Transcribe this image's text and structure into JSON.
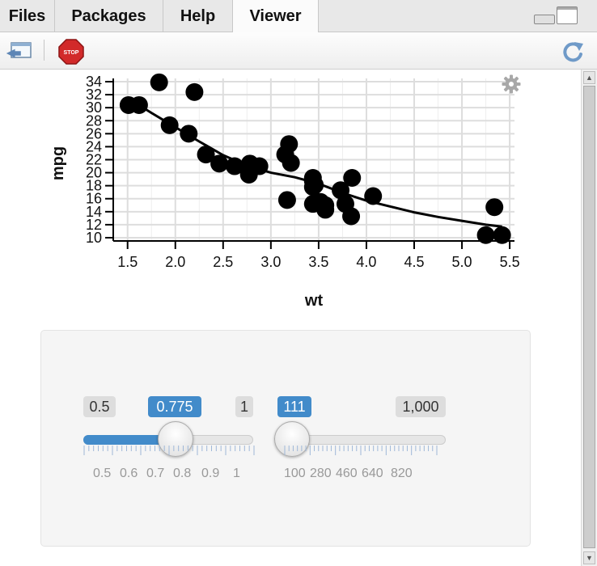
{
  "tabs": [
    {
      "label": "Files",
      "active": false
    },
    {
      "label": "Packages",
      "active": false
    },
    {
      "label": "Help",
      "active": false
    },
    {
      "label": "Viewer",
      "active": true
    }
  ],
  "toolbar": {
    "export_icon": "export-window-icon",
    "stop_label": "STOP",
    "refresh_icon": "refresh-icon"
  },
  "chart_data": {
    "type": "scatter",
    "xlabel": "wt",
    "ylabel": "mpg",
    "xlim": [
      1.35,
      5.55
    ],
    "ylim": [
      9.5,
      34.5
    ],
    "x_ticks": [
      "1.5",
      "2.0",
      "2.5",
      "3.0",
      "3.5",
      "4.0",
      "4.5",
      "5.0",
      "5.5"
    ],
    "y_ticks": [
      "10",
      "12",
      "14",
      "16",
      "18",
      "20",
      "22",
      "24",
      "26",
      "28",
      "30",
      "32",
      "34"
    ],
    "grid": true,
    "points": [
      [
        1.51,
        30.4
      ],
      [
        1.62,
        30.4
      ],
      [
        1.83,
        33.9
      ],
      [
        1.94,
        27.3
      ],
      [
        2.14,
        26.0
      ],
      [
        2.2,
        32.4
      ],
      [
        2.32,
        22.8
      ],
      [
        2.46,
        21.4
      ],
      [
        2.62,
        21.0
      ],
      [
        2.77,
        19.7
      ],
      [
        2.78,
        21.4
      ],
      [
        2.88,
        21.0
      ],
      [
        3.15,
        22.8
      ],
      [
        3.17,
        15.8
      ],
      [
        3.19,
        24.4
      ],
      [
        3.21,
        21.5
      ],
      [
        3.44,
        18.7
      ],
      [
        3.44,
        19.2
      ],
      [
        3.44,
        17.8
      ],
      [
        3.46,
        18.1
      ],
      [
        3.44,
        15.2
      ],
      [
        3.52,
        15.5
      ],
      [
        3.57,
        15.0
      ],
      [
        3.57,
        14.3
      ],
      [
        3.73,
        17.3
      ],
      [
        3.78,
        15.2
      ],
      [
        3.84,
        13.3
      ],
      [
        3.85,
        19.2
      ],
      [
        4.07,
        16.4
      ],
      [
        5.25,
        10.4
      ],
      [
        5.34,
        14.7
      ],
      [
        5.42,
        10.4
      ]
    ],
    "trend": [
      [
        1.51,
        31.4
      ],
      [
        1.75,
        29.2
      ],
      [
        2.0,
        27.0
      ],
      [
        2.25,
        24.8
      ],
      [
        2.5,
        22.7
      ],
      [
        2.75,
        21.1
      ],
      [
        3.0,
        20.0
      ],
      [
        3.25,
        19.3
      ],
      [
        3.5,
        18.3
      ],
      [
        3.75,
        16.9
      ],
      [
        4.0,
        15.7
      ],
      [
        4.25,
        14.8
      ],
      [
        4.5,
        13.9
      ],
      [
        4.75,
        13.2
      ],
      [
        5.0,
        12.6
      ],
      [
        5.25,
        12.0
      ],
      [
        5.42,
        11.7
      ]
    ]
  },
  "slider1": {
    "min_label": "0.5",
    "max_label": "1",
    "value_label": "0.775",
    "min": 0.5,
    "max": 1,
    "value": 0.775,
    "tick_labels": [
      "0.5",
      "0.6",
      "0.7",
      "0.8",
      "0.9",
      "1"
    ]
  },
  "slider2": {
    "max_label": "1,000",
    "value_label": "111",
    "min": 100,
    "max": 1000,
    "value": 111,
    "tick_labels": [
      "100",
      "280",
      "460",
      "640",
      "820"
    ]
  }
}
